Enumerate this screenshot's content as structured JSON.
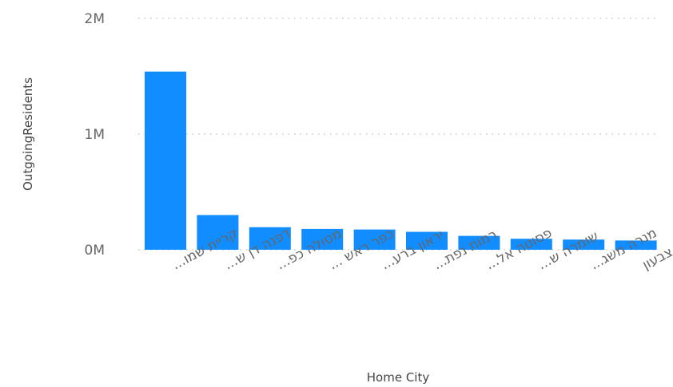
{
  "chart_data": {
    "type": "bar",
    "xlabel": "Home City",
    "ylabel": "OutgoingResidents",
    "ylim": [
      0,
      2000000
    ],
    "yticks": [
      {
        "value": 0,
        "label": "0M"
      },
      {
        "value": 1000000,
        "label": "1M"
      },
      {
        "value": 2000000,
        "label": "2M"
      }
    ],
    "grid": true,
    "categories": [
      "קריית שמו...",
      "דפנה דן ש...",
      "מטולה כפ...",
      "כפר ראש ...",
      "יראון ברע...",
      "רמות נפת...",
      "פסוטה אל...",
      "שומרה ש...",
      "מנרה משג...",
      "סאסא צבעון"
    ],
    "values": [
      1540000,
      300000,
      195000,
      180000,
      175000,
      155000,
      120000,
      95000,
      88000,
      80000
    ],
    "bar_color": "#118dff"
  }
}
